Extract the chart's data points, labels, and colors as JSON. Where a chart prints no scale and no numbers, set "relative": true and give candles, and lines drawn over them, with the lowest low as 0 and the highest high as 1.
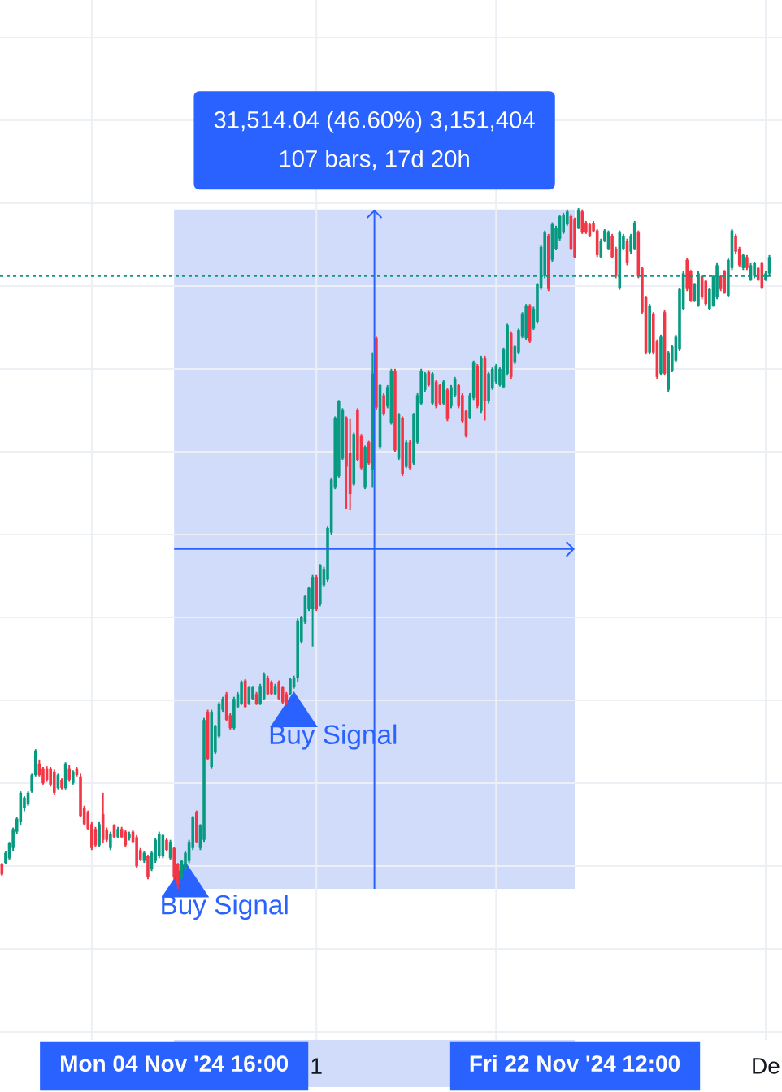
{
  "chart_data": {
    "type": "candlestick",
    "relative": true,
    "x": [
      "2024-10-28T00:00",
      "2024-10-28T04:00",
      "2024-10-28T08:00",
      "2024-10-28T12:00",
      "2024-10-28T16:00",
      "2024-10-28T20:00",
      "2024-10-29T00:00",
      "2024-10-29T04:00",
      "2024-10-29T08:00",
      "2024-10-29T12:00",
      "2024-10-29T16:00",
      "2024-10-29T20:00",
      "2024-10-30T00:00",
      "2024-10-30T04:00",
      "2024-10-30T08:00",
      "2024-10-30T12:00",
      "2024-10-30T16:00",
      "2024-10-30T20:00",
      "2024-10-31T00:00",
      "2024-10-31T04:00",
      "2024-10-31T08:00",
      "2024-10-31T12:00",
      "2024-10-31T16:00",
      "2024-10-31T20:00",
      "2024-11-01T00:00",
      "2024-11-01T04:00",
      "2024-11-01T08:00",
      "2024-11-01T12:00",
      "2024-11-01T16:00",
      "2024-11-01T20:00",
      "2024-11-02T00:00",
      "2024-11-02T04:00",
      "2024-11-02T08:00",
      "2024-11-02T12:00",
      "2024-11-02T16:00",
      "2024-11-02T20:00",
      "2024-11-03T00:00",
      "2024-11-03T04:00",
      "2024-11-03T08:00",
      "2024-11-03T12:00",
      "2024-11-03T16:00",
      "2024-11-03T20:00",
      "2024-11-04T00:00",
      "2024-11-04T04:00",
      "2024-11-04T08:00",
      "2024-11-04T12:00",
      "2024-11-04T16:00",
      "2024-11-04T20:00",
      "2024-11-05T00:00",
      "2024-11-05T04:00",
      "2024-11-05T08:00",
      "2024-11-05T12:00",
      "2024-11-05T16:00",
      "2024-11-05T20:00",
      "2024-11-06T00:00",
      "2024-11-06T04:00",
      "2024-11-06T08:00",
      "2024-11-06T12:00",
      "2024-11-06T16:00",
      "2024-11-06T20:00",
      "2024-11-07T00:00",
      "2024-11-07T04:00",
      "2024-11-07T08:00",
      "2024-11-07T12:00",
      "2024-11-07T16:00",
      "2024-11-07T20:00",
      "2024-11-08T00:00",
      "2024-11-08T04:00",
      "2024-11-08T08:00",
      "2024-11-08T12:00",
      "2024-11-08T16:00",
      "2024-11-08T20:00",
      "2024-11-09T00:00",
      "2024-11-09T04:00",
      "2024-11-09T08:00",
      "2024-11-09T12:00",
      "2024-11-09T16:00",
      "2024-11-09T20:00",
      "2024-11-10T00:00",
      "2024-11-10T04:00",
      "2024-11-10T08:00",
      "2024-11-10T12:00",
      "2024-11-10T16:00",
      "2024-11-10T20:00",
      "2024-11-11T00:00",
      "2024-11-11T04:00",
      "2024-11-11T08:00",
      "2024-11-11T12:00",
      "2024-11-11T16:00",
      "2024-11-11T20:00",
      "2024-11-12T00:00",
      "2024-11-12T04:00",
      "2024-11-12T08:00",
      "2024-11-12T12:00",
      "2024-11-12T16:00",
      "2024-11-12T20:00",
      "2024-11-13T00:00",
      "2024-11-13T04:00",
      "2024-11-13T08:00",
      "2024-11-13T12:00",
      "2024-11-13T16:00",
      "2024-11-13T20:00",
      "2024-11-14T00:00",
      "2024-11-14T04:00",
      "2024-11-14T08:00",
      "2024-11-14T12:00",
      "2024-11-14T16:00",
      "2024-11-14T20:00",
      "2024-11-15T00:00",
      "2024-11-15T04:00",
      "2024-11-15T08:00",
      "2024-11-15T12:00",
      "2024-11-15T16:00",
      "2024-11-15T20:00",
      "2024-11-16T00:00",
      "2024-11-16T04:00",
      "2024-11-16T08:00",
      "2024-11-16T12:00",
      "2024-11-16T16:00",
      "2024-11-16T20:00",
      "2024-11-17T00:00",
      "2024-11-17T04:00",
      "2024-11-17T08:00",
      "2024-11-17T12:00",
      "2024-11-17T16:00",
      "2024-11-17T20:00",
      "2024-11-18T00:00",
      "2024-11-18T04:00",
      "2024-11-18T08:00",
      "2024-11-18T12:00",
      "2024-11-18T16:00",
      "2024-11-18T20:00",
      "2024-11-19T00:00",
      "2024-11-19T04:00",
      "2024-11-19T08:00",
      "2024-11-19T12:00",
      "2024-11-19T16:00",
      "2024-11-19T20:00",
      "2024-11-20T00:00",
      "2024-11-20T04:00",
      "2024-11-20T08:00",
      "2024-11-20T12:00",
      "2024-11-20T16:00",
      "2024-11-20T20:00",
      "2024-11-21T00:00",
      "2024-11-21T04:00",
      "2024-11-21T08:00",
      "2024-11-21T12:00",
      "2024-11-21T16:00",
      "2024-11-21T20:00",
      "2024-11-22T00:00",
      "2024-11-22T04:00",
      "2024-11-22T08:00",
      "2024-11-22T12:00",
      "2024-11-22T16:00",
      "2024-11-22T20:00",
      "2024-11-23T00:00",
      "2024-11-23T04:00",
      "2024-11-23T08:00",
      "2024-11-23T12:00",
      "2024-11-23T16:00",
      "2024-11-23T20:00",
      "2024-11-24T00:00",
      "2024-11-24T04:00",
      "2024-11-24T08:00",
      "2024-11-24T12:00",
      "2024-11-24T16:00",
      "2024-11-24T20:00",
      "2024-11-25T00:00",
      "2024-11-25T04:00",
      "2024-11-25T08:00",
      "2024-11-25T12:00",
      "2024-11-25T16:00",
      "2024-11-25T20:00",
      "2024-11-26T00:00",
      "2024-11-26T04:00",
      "2024-11-26T08:00",
      "2024-11-26T12:00",
      "2024-11-26T16:00",
      "2024-11-26T20:00",
      "2024-11-27T00:00",
      "2024-11-27T04:00",
      "2024-11-27T08:00",
      "2024-11-27T12:00",
      "2024-11-27T16:00",
      "2024-11-27T20:00",
      "2024-11-28T00:00",
      "2024-11-28T04:00",
      "2024-11-28T08:00",
      "2024-11-28T12:00",
      "2024-11-28T16:00",
      "2024-11-28T20:00",
      "2024-11-29T00:00",
      "2024-11-29T04:00",
      "2024-11-29T08:00",
      "2024-11-29T12:00",
      "2024-11-29T16:00",
      "2024-11-29T20:00",
      "2024-11-30T00:00",
      "2024-11-30T04:00",
      "2024-11-30T08:00",
      "2024-11-30T12:00",
      "2024-11-30T16:00",
      "2024-11-30T20:00",
      "2024-12-01T00:00",
      "2024-12-01T04:00"
    ],
    "ohlc": [
      [
        0.036,
        0.038,
        0.019,
        0.021
      ],
      [
        0.038,
        0.055,
        0.036,
        0.053
      ],
      [
        0.045,
        0.069,
        0.043,
        0.067
      ],
      [
        0.06,
        0.09,
        0.055,
        0.088
      ],
      [
        0.084,
        0.105,
        0.081,
        0.103
      ],
      [
        0.098,
        0.143,
        0.093,
        0.141
      ],
      [
        0.119,
        0.136,
        0.114,
        0.134
      ],
      [
        0.124,
        0.143,
        0.122,
        0.141
      ],
      [
        0.143,
        0.169,
        0.141,
        0.167
      ],
      [
        0.167,
        0.205,
        0.165,
        0.203
      ],
      [
        0.184,
        0.19,
        0.165,
        0.167
      ],
      [
        0.177,
        0.179,
        0.153,
        0.155
      ],
      [
        0.177,
        0.18,
        0.158,
        0.16
      ],
      [
        0.177,
        0.179,
        0.15,
        0.153
      ],
      [
        0.172,
        0.175,
        0.138,
        0.141
      ],
      [
        0.148,
        0.169,
        0.146,
        0.167
      ],
      [
        0.16,
        0.162,
        0.146,
        0.148
      ],
      [
        0.148,
        0.186,
        0.146,
        0.184
      ],
      [
        0.177,
        0.182,
        0.158,
        0.16
      ],
      [
        0.155,
        0.174,
        0.153,
        0.172
      ],
      [
        0.177,
        0.179,
        0.165,
        0.167
      ],
      [
        0.165,
        0.169,
        0.105,
        0.107
      ],
      [
        0.119,
        0.122,
        0.093,
        0.095
      ],
      [
        0.112,
        0.115,
        0.086,
        0.088
      ],
      [
        0.095,
        0.098,
        0.057,
        0.06
      ],
      [
        0.088,
        0.091,
        0.062,
        0.064
      ],
      [
        0.064,
        0.098,
        0.062,
        0.095
      ],
      [
        0.11,
        0.141,
        0.067,
        0.072
      ],
      [
        0.086,
        0.09,
        0.069,
        0.072
      ],
      [
        0.06,
        0.084,
        0.057,
        0.081
      ],
      [
        0.093,
        0.095,
        0.074,
        0.076
      ],
      [
        0.076,
        0.091,
        0.074,
        0.088
      ],
      [
        0.088,
        0.091,
        0.074,
        0.076
      ],
      [
        0.084,
        0.086,
        0.062,
        0.064
      ],
      [
        0.074,
        0.084,
        0.071,
        0.081
      ],
      [
        0.084,
        0.086,
        0.067,
        0.069
      ],
      [
        0.076,
        0.079,
        0.031,
        0.033
      ],
      [
        0.057,
        0.06,
        0.041,
        0.043
      ],
      [
        0.041,
        0.055,
        0.038,
        0.053
      ],
      [
        0.048,
        0.05,
        0.014,
        0.017
      ],
      [
        0.029,
        0.055,
        0.026,
        0.053
      ],
      [
        0.041,
        0.074,
        0.038,
        0.072
      ],
      [
        0.048,
        0.084,
        0.045,
        0.081
      ],
      [
        0.048,
        0.081,
        0.045,
        0.079
      ],
      [
        0.072,
        0.074,
        0.055,
        0.057
      ],
      [
        0.045,
        0.072,
        0.043,
        0.069
      ],
      [
        0.06,
        0.062,
        0.014,
        0.017
      ],
      [
        0.036,
        0.038,
        0,
        0.007
      ],
      [
        0.017,
        0.043,
        0.014,
        0.041
      ],
      [
        0.029,
        0.055,
        0.026,
        0.053
      ],
      [
        0.041,
        0.072,
        0.038,
        0.069
      ],
      [
        0.06,
        0.107,
        0.057,
        0.105
      ],
      [
        0.112,
        0.115,
        0.067,
        0.069
      ],
      [
        0.06,
        0.095,
        0.057,
        0.093
      ],
      [
        0.072,
        0.251,
        0.069,
        0.248
      ],
      [
        0.26,
        0.263,
        0.189,
        0.191
      ],
      [
        0.179,
        0.263,
        0.177,
        0.26
      ],
      [
        0.2,
        0.241,
        0.198,
        0.239
      ],
      [
        0.224,
        0.274,
        0.222,
        0.272
      ],
      [
        0.263,
        0.282,
        0.26,
        0.279
      ],
      [
        0.286,
        0.289,
        0.246,
        0.248
      ],
      [
        0.255,
        0.258,
        0.234,
        0.236
      ],
      [
        0.236,
        0.282,
        0.234,
        0.279
      ],
      [
        0.267,
        0.289,
        0.265,
        0.286
      ],
      [
        0.272,
        0.306,
        0.27,
        0.303
      ],
      [
        0.306,
        0.308,
        0.265,
        0.267
      ],
      [
        0.272,
        0.298,
        0.27,
        0.296
      ],
      [
        0.279,
        0.298,
        0.277,
        0.296
      ],
      [
        0.286,
        0.289,
        0.27,
        0.272
      ],
      [
        0.272,
        0.301,
        0.27,
        0.298
      ],
      [
        0.279,
        0.318,
        0.277,
        0.315
      ],
      [
        0.31,
        0.313,
        0.284,
        0.286
      ],
      [
        0.303,
        0.306,
        0.284,
        0.286
      ],
      [
        0.286,
        0.301,
        0.284,
        0.298
      ],
      [
        0.303,
        0.306,
        0.277,
        0.279
      ],
      [
        0.296,
        0.298,
        0.272,
        0.274
      ],
      [
        0.286,
        0.289,
        0.27,
        0.272
      ],
      [
        0.286,
        0.31,
        0.284,
        0.308
      ],
      [
        0.296,
        0.313,
        0.294,
        0.31
      ],
      [
        0.31,
        0.397,
        0.303,
        0.394
      ],
      [
        0.363,
        0.401,
        0.36,
        0.399
      ],
      [
        0.392,
        0.432,
        0.389,
        0.43
      ],
      [
        0.411,
        0.444,
        0.408,
        0.442
      ],
      [
        0.411,
        0.461,
        0.356,
        0.458
      ],
      [
        0.458,
        0.461,
        0.408,
        0.411
      ],
      [
        0.418,
        0.477,
        0.415,
        0.475
      ],
      [
        0.446,
        0.473,
        0.444,
        0.47
      ],
      [
        0.454,
        0.532,
        0.451,
        0.53
      ],
      [
        0.523,
        0.604,
        0.52,
        0.601
      ],
      [
        0.589,
        0.694,
        0.587,
        0.692
      ],
      [
        0.606,
        0.718,
        0.604,
        0.716
      ],
      [
        0.632,
        0.706,
        0.63,
        0.704
      ],
      [
        0.692,
        0.694,
        0.558,
        0.62
      ],
      [
        0.64,
        0.69,
        0.556,
        0.58
      ],
      [
        0.594,
        0.67,
        0.592,
        0.668
      ],
      [
        0.704,
        0.706,
        0.628,
        0.63
      ],
      [
        0.666,
        0.668,
        0.616,
        0.618
      ],
      [
        0.589,
        0.651,
        0.587,
        0.649
      ],
      [
        0.656,
        0.658,
        0.623,
        0.625
      ],
      [
        0.616,
        0.788,
        0.589,
        0.757
      ],
      [
        0.809,
        0.811,
        0.704,
        0.707
      ],
      [
        0.649,
        0.742,
        0.646,
        0.74
      ],
      [
        0.725,
        0.728,
        0.695,
        0.697
      ],
      [
        0.709,
        0.74,
        0.706,
        0.737
      ],
      [
        0.685,
        0.764,
        0.682,
        0.761
      ],
      [
        0.761,
        0.764,
        0.642,
        0.644
      ],
      [
        0.632,
        0.699,
        0.63,
        0.697
      ],
      [
        0.692,
        0.694,
        0.606,
        0.609
      ],
      [
        0.62,
        0.659,
        0.618,
        0.656
      ],
      [
        0.656,
        0.659,
        0.616,
        0.618
      ],
      [
        0.625,
        0.699,
        0.623,
        0.697
      ],
      [
        0.656,
        0.728,
        0.654,
        0.725
      ],
      [
        0.713,
        0.764,
        0.711,
        0.761
      ],
      [
        0.733,
        0.759,
        0.73,
        0.757
      ],
      [
        0.759,
        0.762,
        0.738,
        0.74
      ],
      [
        0.713,
        0.759,
        0.711,
        0.757
      ],
      [
        0.745,
        0.747,
        0.706,
        0.709
      ],
      [
        0.74,
        0.742,
        0.711,
        0.713
      ],
      [
        0.713,
        0.747,
        0.711,
        0.745
      ],
      [
        0.733,
        0.735,
        0.687,
        0.69
      ],
      [
        0.709,
        0.74,
        0.706,
        0.737
      ],
      [
        0.725,
        0.752,
        0.723,
        0.749
      ],
      [
        0.74,
        0.742,
        0.706,
        0.709
      ],
      [
        0.725,
        0.728,
        0.685,
        0.687
      ],
      [
        0.702,
        0.704,
        0.663,
        0.666
      ],
      [
        0.692,
        0.728,
        0.69,
        0.725
      ],
      [
        0.721,
        0.776,
        0.718,
        0.773
      ],
      [
        0.768,
        0.771,
        0.706,
        0.709
      ],
      [
        0.702,
        0.783,
        0.699,
        0.78
      ],
      [
        0.78,
        0.783,
        0.688,
        0.716
      ],
      [
        0.716,
        0.759,
        0.713,
        0.757
      ],
      [
        0.735,
        0.766,
        0.733,
        0.764
      ],
      [
        0.745,
        0.771,
        0.742,
        0.768
      ],
      [
        0.74,
        0.766,
        0.738,
        0.764
      ],
      [
        0.737,
        0.795,
        0.735,
        0.792
      ],
      [
        0.757,
        0.83,
        0.754,
        0.828
      ],
      [
        0.816,
        0.819,
        0.749,
        0.752
      ],
      [
        0.773,
        0.799,
        0.771,
        0.797
      ],
      [
        0.788,
        0.823,
        0.785,
        0.821
      ],
      [
        0.811,
        0.847,
        0.809,
        0.845
      ],
      [
        0.809,
        0.859,
        0.806,
        0.857
      ],
      [
        0.857,
        0.859,
        0.802,
        0.804
      ],
      [
        0.823,
        0.855,
        0.821,
        0.852
      ],
      [
        0.833,
        0.89,
        0.83,
        0.888
      ],
      [
        0.883,
        0.945,
        0.88,
        0.943
      ],
      [
        0.9,
        0.967,
        0.897,
        0.964
      ],
      [
        0.959,
        0.962,
        0.878,
        0.881
      ],
      [
        0.924,
        0.979,
        0.921,
        0.976
      ],
      [
        0.94,
        0.974,
        0.938,
        0.971
      ],
      [
        0.955,
        0.99,
        0.952,
        0.988
      ],
      [
        0.964,
        0.993,
        0.962,
        0.99
      ],
      [
        0.976,
        0.998,
        0.974,
        0.995
      ],
      [
        0.988,
        0.991,
        0.938,
        0.94
      ],
      [
        0.983,
        0.986,
        0.926,
        0.928
      ],
      [
        0.971,
        1,
        0.969,
        0.997
      ],
      [
        0.995,
        0.998,
        0.962,
        0.964
      ],
      [
        0.978,
        0.981,
        0.962,
        0.964
      ],
      [
        0.976,
        0.978,
        0.957,
        0.959
      ],
      [
        0.978,
        0.981,
        0.964,
        0.966
      ],
      [
        0.967,
        0.969,
        0.928,
        0.931
      ],
      [
        0.928,
        0.955,
        0.926,
        0.952
      ],
      [
        0.952,
        0.969,
        0.95,
        0.967
      ],
      [
        0.94,
        0.967,
        0.938,
        0.964
      ],
      [
        0.959,
        0.962,
        0.926,
        0.928
      ],
      [
        0.94,
        0.943,
        0.897,
        0.9
      ],
      [
        0.883,
        0.967,
        0.88,
        0.964
      ],
      [
        0.94,
        0.962,
        0.938,
        0.959
      ],
      [
        0.952,
        0.955,
        0.916,
        0.919
      ],
      [
        0.936,
        0.962,
        0.933,
        0.959
      ],
      [
        0.94,
        0.981,
        0.938,
        0.978
      ],
      [
        0.964,
        0.967,
        0.897,
        0.9
      ],
      [
        0.912,
        0.914,
        0.845,
        0.847
      ],
      [
        0.869,
        0.871,
        0.785,
        0.788
      ],
      [
        0.788,
        0.859,
        0.785,
        0.857
      ],
      [
        0.845,
        0.847,
        0.785,
        0.788
      ],
      [
        0.804,
        0.807,
        0.749,
        0.752
      ],
      [
        0.757,
        0.814,
        0.754,
        0.811
      ],
      [
        0.847,
        0.85,
        0.754,
        0.757
      ],
      [
        0.733,
        0.79,
        0.73,
        0.788
      ],
      [
        0.761,
        0.799,
        0.759,
        0.797
      ],
      [
        0.776,
        0.814,
        0.773,
        0.811
      ],
      [
        0.792,
        0.883,
        0.79,
        0.881
      ],
      [
        0.852,
        0.907,
        0.85,
        0.904
      ],
      [
        0.924,
        0.926,
        0.878,
        0.881
      ],
      [
        0.907,
        0.909,
        0.862,
        0.864
      ],
      [
        0.864,
        0.89,
        0.862,
        0.888
      ],
      [
        0.857,
        0.907,
        0.855,
        0.904
      ],
      [
        0.9,
        0.902,
        0.866,
        0.869
      ],
      [
        0.893,
        0.895,
        0.857,
        0.859
      ],
      [
        0.852,
        0.883,
        0.85,
        0.881
      ],
      [
        0.857,
        0.902,
        0.855,
        0.9
      ],
      [
        0.869,
        0.919,
        0.866,
        0.916
      ],
      [
        0.9,
        0.902,
        0.878,
        0.881
      ],
      [
        0.907,
        0.909,
        0.874,
        0.876
      ],
      [
        0.871,
        0.926,
        0.869,
        0.924
      ],
      [
        0.912,
        0.969,
        0.909,
        0.967
      ],
      [
        0.959,
        0.962,
        0.933,
        0.936
      ],
      [
        0.94,
        0.943,
        0.914,
        0.916
      ],
      [
        0.912,
        0.933,
        0.909,
        0.931
      ],
      [
        0.928,
        0.931,
        0.909,
        0.912
      ],
      [
        0.895,
        0.919,
        0.893,
        0.916
      ],
      [
        0.9,
        0.921,
        0.897,
        0.919
      ],
      [
        0.912,
        0.914,
        0.893,
        0.895
      ],
      [
        0.919,
        0.921,
        0.881,
        0.883
      ],
      [
        0.895,
        0.907,
        0.893,
        0.904
      ],
      [
        0.904,
        0.931,
        0.902,
        0.928
      ]
    ],
    "colors": [
      "#f23645",
      "#089981",
      "#089981",
      "#089981",
      "#089981",
      "#089981",
      "#089981",
      "#089981",
      "#089981",
      "#089981",
      "#f23645",
      "#f23645",
      "#f23645",
      "#f23645",
      "#f23645",
      "#089981",
      "#f23645",
      "#089981",
      "#f23645",
      "#089981",
      "#f23645",
      "#f23645",
      "#f23645",
      "#f23645",
      "#f23645",
      "#f23645",
      "#089981",
      "#f23645",
      "#f23645",
      "#089981",
      "#f23645",
      "#089981",
      "#f23645",
      "#f23645",
      "#089981",
      "#f23645",
      "#f23645",
      "#f23645",
      "#089981",
      "#f23645",
      "#089981",
      "#089981",
      "#089981",
      "#089981",
      "#f23645",
      "#089981",
      "#f23645",
      "#f23645",
      "#089981",
      "#089981",
      "#089981",
      "#089981",
      "#f23645",
      "#089981",
      "#089981",
      "#f23645",
      "#089981",
      "#089981",
      "#089981",
      "#089981",
      "#f23645",
      "#f23645",
      "#089981",
      "#089981",
      "#089981",
      "#f23645",
      "#089981",
      "#089981",
      "#f23645",
      "#089981",
      "#089981",
      "#f23645",
      "#f23645",
      "#089981",
      "#f23645",
      "#f23645",
      "#f23645",
      "#089981",
      "#089981",
      "#089981",
      "#089981",
      "#089981",
      "#089981",
      "#089981",
      "#f23645",
      "#089981",
      "#089981",
      "#089981",
      "#089981",
      "#089981",
      "#089981",
      "#089981",
      "#f23645",
      "#f23645",
      "#089981",
      "#f23645",
      "#f23645",
      "#089981",
      "#f23645",
      "#089981",
      "#f23645",
      "#089981",
      "#f23645",
      "#089981",
      "#089981",
      "#f23645",
      "#089981",
      "#f23645",
      "#089981",
      "#f23645",
      "#089981",
      "#089981",
      "#089981",
      "#089981",
      "#f23645",
      "#089981",
      "#f23645",
      "#f23645",
      "#089981",
      "#f23645",
      "#089981",
      "#089981",
      "#f23645",
      "#f23645",
      "#f23645",
      "#089981",
      "#089981",
      "#f23645",
      "#089981",
      "#f23645",
      "#089981",
      "#089981",
      "#089981",
      "#089981",
      "#089981",
      "#089981",
      "#f23645",
      "#089981",
      "#089981",
      "#089981",
      "#089981",
      "#f23645",
      "#089981",
      "#089981",
      "#089981",
      "#089981",
      "#f23645",
      "#089981",
      "#089981",
      "#089981",
      "#089981",
      "#089981",
      "#f23645",
      "#f23645",
      "#089981",
      "#f23645",
      "#f23645",
      "#f23645",
      "#f23645",
      "#f23645",
      "#089981",
      "#089981",
      "#089981",
      "#f23645",
      "#f23645",
      "#089981",
      "#089981",
      "#f23645",
      "#089981",
      "#089981",
      "#f23645",
      "#f23645",
      "#f23645",
      "#089981",
      "#f23645",
      "#f23645",
      "#089981",
      "#f23645",
      "#089981",
      "#089981",
      "#089981",
      "#089981",
      "#089981",
      "#f23645",
      "#f23645",
      "#089981",
      "#089981",
      "#f23645",
      "#f23645",
      "#089981",
      "#089981",
      "#089981",
      "#f23645",
      "#f23645",
      "#089981",
      "#089981",
      "#f23645",
      "#f23645",
      "#089981",
      "#f23645",
      "#089981",
      "#089981",
      "#f23645",
      "#f23645",
      "#089981",
      "#089981"
    ],
    "xlim": [
      "2024-10-27T22:00",
      "2024-12-01T07:00"
    ],
    "xticks": [
      {
        "value": "2024-11-01T00:00",
        "label": null
      },
      {
        "value": "2024-11-04T16:00",
        "label": "Mon 04 Nov '24 16:00"
      },
      {
        "value": "2024-11-11T00:00",
        "label": "1"
      },
      {
        "value": "2024-11-19T00:00",
        "label": null
      },
      {
        "value": "2024-11-22T12:00",
        "label": "Fri 22 Nov '24 12:00"
      },
      {
        "value": "2024-12-01T00:00",
        "label": "De"
      }
    ],
    "grid": true,
    "bands": [
      {
        "axis": "x",
        "from": "2024-11-04T16:00",
        "to": "2024-11-22T12:00",
        "color": "#d1dcfb"
      }
    ],
    "ref_lines": [
      {
        "axis": "y",
        "value": 0.9,
        "color": "#089981",
        "line_style": "dotted"
      }
    ],
    "annotations": [
      "31,514.04 (46.60%) 3,151,404",
      "107 bars, 17d 20h",
      {
        "text": "Buy Signal",
        "x": "2024-11-05T04:00",
        "y": 0.04
      },
      {
        "text": "Buy Signal",
        "x": "2024-11-10T00:00",
        "y": 0.29
      }
    ]
  }
}
